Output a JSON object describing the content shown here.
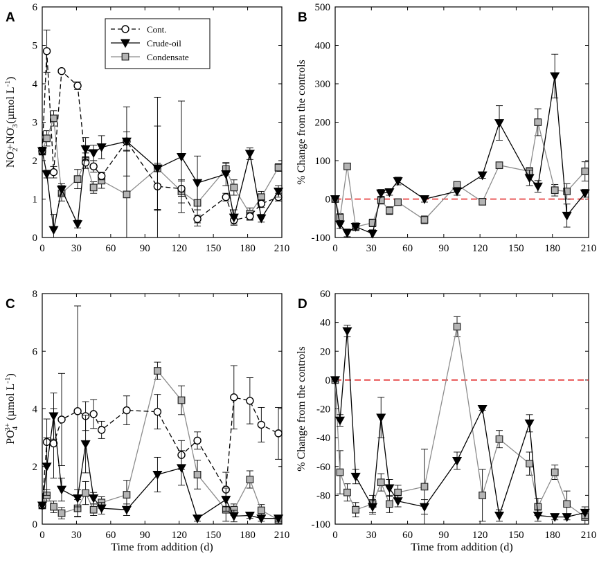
{
  "chart_data": [
    {
      "panel": "A",
      "type": "line",
      "xlabel": "",
      "ylabel_parts": [
        "NO",
        "2",
        "-",
        "+NO",
        "3",
        "-",
        " (µmol L",
        "-1",
        ")"
      ],
      "xlim": [
        0,
        210
      ],
      "ylim": [
        0,
        6
      ],
      "xticks": [
        0,
        30,
        60,
        90,
        120,
        150,
        180,
        210
      ],
      "yticks": [
        0,
        1,
        2,
        3,
        4,
        5,
        6
      ],
      "reference_line": null,
      "legend": {
        "position": "top-center",
        "entries": [
          {
            "label": "Cont.",
            "marker": "circle",
            "line": "dashed"
          },
          {
            "label": "Crude-oil",
            "marker": "triangle-down",
            "line": "solid"
          },
          {
            "label": "Condensate",
            "marker": "square",
            "line": "gray"
          }
        ]
      },
      "series": [
        {
          "name": "Cont.",
          "marker": "circle",
          "color": "#000000",
          "dash": "7,4",
          "x": [
            0,
            4,
            10,
            17,
            31,
            38,
            45,
            52,
            74,
            101,
            122,
            136,
            161,
            168,
            182,
            192,
            207
          ],
          "y": [
            2.25,
            4.85,
            1.7,
            4.33,
            3.95,
            1.95,
            1.85,
            1.6,
            2.5,
            1.33,
            1.27,
            0.48,
            1.05,
            0.45,
            0.55,
            0.88,
            1.05
          ],
          "err": [
            0.1,
            0.55,
            0.15,
            0.05,
            0.1,
            0.15,
            0.15,
            0.1,
            0.25,
            0.6,
            0.2,
            0.1,
            0.1,
            0.1,
            0.1,
            0.1,
            0.1
          ]
        },
        {
          "name": "Crude-oil",
          "marker": "triangle-down",
          "color": "#000000",
          "dash": "",
          "x": [
            0,
            4,
            10,
            17,
            31,
            38,
            45,
            52,
            74,
            101,
            122,
            136,
            161,
            168,
            182,
            192,
            207
          ],
          "y": [
            2.25,
            1.65,
            0.2,
            1.25,
            0.35,
            2.3,
            2.2,
            2.35,
            2.5,
            1.8,
            2.1,
            1.42,
            1.65,
            0.52,
            2.18,
            0.5,
            1.2
          ],
          "err": [
            0.1,
            0.1,
            0.4,
            0.15,
            0.1,
            0.3,
            0.2,
            0.3,
            0.9,
            1.85,
            1.45,
            0.7,
            0.3,
            0.2,
            0.15,
            0.1,
            0.15
          ]
        },
        {
          "name": "Condensate",
          "marker": "square",
          "color": "#8c8c8c",
          "dash": "",
          "x": [
            0,
            4,
            10,
            17,
            31,
            38,
            45,
            52,
            74,
            101,
            122,
            136,
            161,
            168,
            182,
            192,
            207
          ],
          "y": [
            2.25,
            2.58,
            3.1,
            1.15,
            1.52,
            2.0,
            1.3,
            1.48,
            1.12,
            1.8,
            1.2,
            0.9,
            1.78,
            1.3,
            0.62,
            1.05,
            1.82
          ],
          "err": [
            0.1,
            0.2,
            0.2,
            0.2,
            0.25,
            0.2,
            0.15,
            0.2,
            1.15,
            1.1,
            0.3,
            0.6,
            0.15,
            0.2,
            0.15,
            0.15,
            0.1
          ]
        }
      ]
    },
    {
      "panel": "B",
      "type": "line",
      "xlabel": "",
      "ylabel_parts": [
        "% Change from the controls"
      ],
      "xlim": [
        0,
        210
      ],
      "ylim": [
        -100,
        500
      ],
      "xticks": [
        0,
        30,
        60,
        90,
        120,
        150,
        180,
        210
      ],
      "yticks": [
        -100,
        0,
        100,
        200,
        300,
        400,
        500
      ],
      "reference_line": 0,
      "legend": null,
      "series": [
        {
          "name": "Crude-oil",
          "marker": "triangle-down",
          "color": "#000000",
          "dash": "",
          "x": [
            0,
            4,
            10,
            17,
            31,
            38,
            45,
            52,
            74,
            101,
            122,
            136,
            161,
            168,
            182,
            192,
            207
          ],
          "y": [
            0,
            -66,
            -88,
            -72,
            -90,
            15,
            18,
            47,
            0,
            20,
            62,
            198,
            55,
            33,
            320,
            -43,
            15
          ],
          "err": [
            5,
            10,
            10,
            8,
            10,
            10,
            8,
            10,
            8,
            10,
            8,
            45,
            20,
            15,
            57,
            30,
            10
          ]
        },
        {
          "name": "Condensate",
          "marker": "square",
          "color": "#8c8c8c",
          "dash": "",
          "x": [
            0,
            4,
            10,
            17,
            31,
            38,
            45,
            52,
            74,
            101,
            122,
            136,
            161,
            168,
            182,
            192,
            207
          ],
          "y": [
            0,
            -48,
            85,
            -72,
            -62,
            -3,
            -30,
            -8,
            -54,
            37,
            -7,
            88,
            72,
            200,
            23,
            20,
            72
          ],
          "err": [
            5,
            10,
            8,
            10,
            10,
            10,
            10,
            8,
            10,
            8,
            5,
            8,
            10,
            35,
            15,
            20,
            25
          ]
        }
      ]
    },
    {
      "panel": "C",
      "type": "line",
      "xlabel": "Time from addition (d)",
      "ylabel_parts": [
        "PO",
        "4",
        "3+",
        " (µmol L",
        "-1",
        ")"
      ],
      "xlim": [
        0,
        210
      ],
      "ylim": [
        0,
        8
      ],
      "xticks": [
        0,
        30,
        60,
        90,
        120,
        150,
        180,
        210
      ],
      "yticks": [
        0,
        2,
        4,
        6,
        8
      ],
      "reference_line": null,
      "legend": null,
      "series": [
        {
          "name": "Cont.",
          "marker": "circle",
          "color": "#000000",
          "dash": "7,4",
          "x": [
            0,
            4,
            10,
            17,
            31,
            38,
            45,
            52,
            74,
            101,
            122,
            136,
            161,
            168,
            182,
            192,
            207
          ],
          "y": [
            0.65,
            2.85,
            2.8,
            3.63,
            3.92,
            3.75,
            3.82,
            3.27,
            3.95,
            3.9,
            2.4,
            2.9,
            1.2,
            4.4,
            4.28,
            3.45,
            3.15
          ],
          "err": [
            0.1,
            0.8,
            1.2,
            1.6,
            3.65,
            0.5,
            0.5,
            0.3,
            0.5,
            0.6,
            0.5,
            0.3,
            0.6,
            1.1,
            0.8,
            0.6,
            0.9
          ]
        },
        {
          "name": "Crude-oil",
          "marker": "triangle-down",
          "color": "#000000",
          "dash": "",
          "x": [
            0,
            4,
            10,
            17,
            31,
            38,
            45,
            52,
            74,
            101,
            122,
            136,
            161,
            168,
            182,
            192,
            207
          ],
          "y": [
            0.65,
            2.0,
            3.75,
            1.2,
            0.9,
            2.78,
            0.9,
            0.55,
            0.5,
            1.72,
            1.95,
            0.2,
            0.85,
            0.28,
            0.3,
            0.2,
            0.2
          ],
          "err": [
            0.1,
            1.0,
            0.8,
            0.4,
            0.3,
            1.0,
            0.2,
            0.2,
            0.2,
            0.6,
            0.6,
            0.1,
            0.4,
            0.2,
            0.1,
            0.1,
            0.1
          ]
        },
        {
          "name": "Condensate",
          "marker": "square",
          "color": "#8c8c8c",
          "dash": "",
          "x": [
            0,
            4,
            10,
            17,
            31,
            38,
            45,
            52,
            74,
            101,
            122,
            136,
            161,
            168,
            182,
            192,
            207
          ],
          "y": [
            0.65,
            1.0,
            0.6,
            0.38,
            0.55,
            1.08,
            0.5,
            0.75,
            1.02,
            5.32,
            4.3,
            1.72,
            0.5,
            0.5,
            1.55,
            0.48,
            0.15
          ],
          "err": [
            0.1,
            0.2,
            0.2,
            0.2,
            0.3,
            0.4,
            0.2,
            0.2,
            0.5,
            0.3,
            0.5,
            0.5,
            0.4,
            0.2,
            0.3,
            0.2,
            0.1
          ]
        }
      ]
    },
    {
      "panel": "D",
      "type": "line",
      "xlabel": "Time from addition (d)",
      "ylabel_parts": [
        "% Change from the controls"
      ],
      "xlim": [
        0,
        210
      ],
      "ylim": [
        -100,
        60
      ],
      "xticks": [
        0,
        30,
        60,
        90,
        120,
        150,
        180,
        210
      ],
      "yticks": [
        -100,
        -80,
        -60,
        -40,
        -20,
        0,
        20,
        40,
        60
      ],
      "reference_line": 0,
      "legend": null,
      "series": [
        {
          "name": "Crude-oil",
          "marker": "triangle-down",
          "color": "#000000",
          "dash": "",
          "x": [
            0,
            4,
            10,
            17,
            31,
            38,
            45,
            52,
            74,
            101,
            122,
            136,
            161,
            168,
            182,
            192,
            207
          ],
          "y": [
            0,
            -28,
            34,
            -67,
            -88,
            -26,
            -75,
            -84,
            -88,
            -56,
            -20,
            -94,
            -30,
            -94,
            -95,
            -95,
            -92
          ],
          "err": [
            1,
            4,
            4,
            5,
            5,
            14,
            6,
            4,
            5,
            6,
            1,
            4,
            6,
            4,
            2,
            2,
            4
          ]
        },
        {
          "name": "Condensate",
          "marker": "square",
          "color": "#8c8c8c",
          "dash": "",
          "x": [
            0,
            4,
            10,
            17,
            31,
            38,
            45,
            52,
            74,
            101,
            122,
            136,
            161,
            168,
            182,
            192,
            207
          ],
          "y": [
            0,
            -64,
            -78,
            -90,
            -86,
            -71,
            -86,
            -78,
            -74,
            37,
            -80,
            -41,
            -58,
            -88,
            -64,
            -86,
            -95
          ],
          "err": [
            1,
            15,
            6,
            5,
            6,
            6,
            6,
            5,
            26,
            7,
            18,
            6,
            8,
            6,
            5,
            9,
            5
          ]
        }
      ]
    }
  ]
}
